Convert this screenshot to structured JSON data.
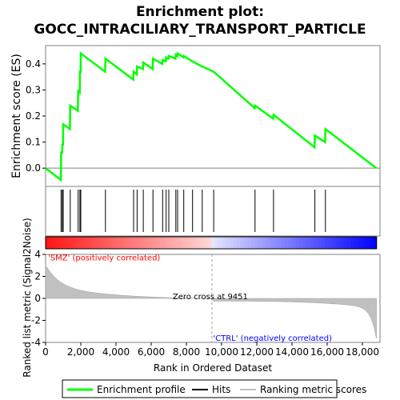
{
  "chart_data": {
    "type": "line",
    "title_line1": "Enrichment plot:",
    "title_line2": "GOCC_INTRACILIARY_TRANSPORT_PARTICLE",
    "ylabel": "Enrichment score (ES)",
    "ylabel2": "Ranked list metric (Signal2Noise)",
    "xlabel": "Rank in Ordered Dataset",
    "xlim": [
      0,
      19000
    ],
    "ylim": [
      -0.07,
      0.47
    ],
    "ylim2": [
      -4,
      4
    ],
    "x_ticks": [
      0,
      2000,
      4000,
      6000,
      8000,
      10000,
      12000,
      14000,
      16000,
      18000
    ],
    "x_tick_labels": [
      "0",
      "2,000",
      "4,000",
      "6,000",
      "8,000",
      "10,000",
      "12,000",
      "14,000",
      "16,000",
      "18,000"
    ],
    "y_ticks": [
      0.0,
      0.1,
      0.2,
      0.3,
      0.4
    ],
    "y_tick_labels": [
      "0.0",
      "0.1",
      "0.2",
      "0.3",
      "0.4"
    ],
    "y2_ticks": [
      4,
      2,
      0,
      -2,
      -4
    ],
    "y2_tick_labels": [
      "4",
      "2",
      "0",
      "-2",
      "-4"
    ],
    "hits": [
      880,
      950,
      1000,
      1400,
      1850,
      1950,
      2000,
      3400,
      5000,
      5200,
      5550,
      6100,
      6650,
      6850,
      7000,
      7400,
      7500,
      7850,
      8350,
      8900,
      9550,
      11900,
      12950,
      15300,
      15900
    ],
    "es_curve": [
      [
        0,
        0.0
      ],
      [
        870,
        -0.045
      ],
      [
        880,
        0.06
      ],
      [
        940,
        0.06
      ],
      [
        950,
        0.09
      ],
      [
        990,
        0.09
      ],
      [
        1000,
        0.168
      ],
      [
        1380,
        0.15
      ],
      [
        1400,
        0.24
      ],
      [
        1830,
        0.22
      ],
      [
        1850,
        0.295
      ],
      [
        1940,
        0.29
      ],
      [
        1950,
        0.37
      ],
      [
        1990,
        0.37
      ],
      [
        2000,
        0.44
      ],
      [
        3380,
        0.37
      ],
      [
        3400,
        0.42
      ],
      [
        4980,
        0.34
      ],
      [
        5000,
        0.37
      ],
      [
        5180,
        0.36
      ],
      [
        5200,
        0.39
      ],
      [
        5530,
        0.38
      ],
      [
        5550,
        0.405
      ],
      [
        6080,
        0.38
      ],
      [
        6100,
        0.42
      ],
      [
        6630,
        0.4
      ],
      [
        6650,
        0.415
      ],
      [
        6830,
        0.41
      ],
      [
        6850,
        0.425
      ],
      [
        6980,
        0.42
      ],
      [
        7000,
        0.43
      ],
      [
        7380,
        0.42
      ],
      [
        7400,
        0.435
      ],
      [
        7480,
        0.43
      ],
      [
        7500,
        0.44
      ],
      [
        7830,
        0.425
      ],
      [
        7850,
        0.43
      ],
      [
        8330,
        0.41
      ],
      [
        8350,
        0.41
      ],
      [
        8880,
        0.39
      ],
      [
        8900,
        0.39
      ],
      [
        9530,
        0.37
      ],
      [
        9550,
        0.37
      ],
      [
        11880,
        0.23
      ],
      [
        11900,
        0.24
      ],
      [
        12930,
        0.19
      ],
      [
        12950,
        0.205
      ],
      [
        15280,
        0.08
      ],
      [
        15300,
        0.125
      ],
      [
        15880,
        0.1
      ],
      [
        15900,
        0.15
      ],
      [
        18800,
        0.0
      ]
    ],
    "zero_cross_label": "Zero cross at 9451",
    "zero_cross": 9451,
    "pos_label": "'SMZ' (positively correlated)",
    "neg_label": "'CTRL' (negatively correlated)",
    "legend": [
      "Enrichment profile",
      "Hits",
      "Ranking metric scores"
    ],
    "colors": {
      "es": "#00ff00",
      "hits": "#000000",
      "metric": "#c0c0c0",
      "pos": "#ff0000",
      "neg": "#0000ff"
    }
  }
}
